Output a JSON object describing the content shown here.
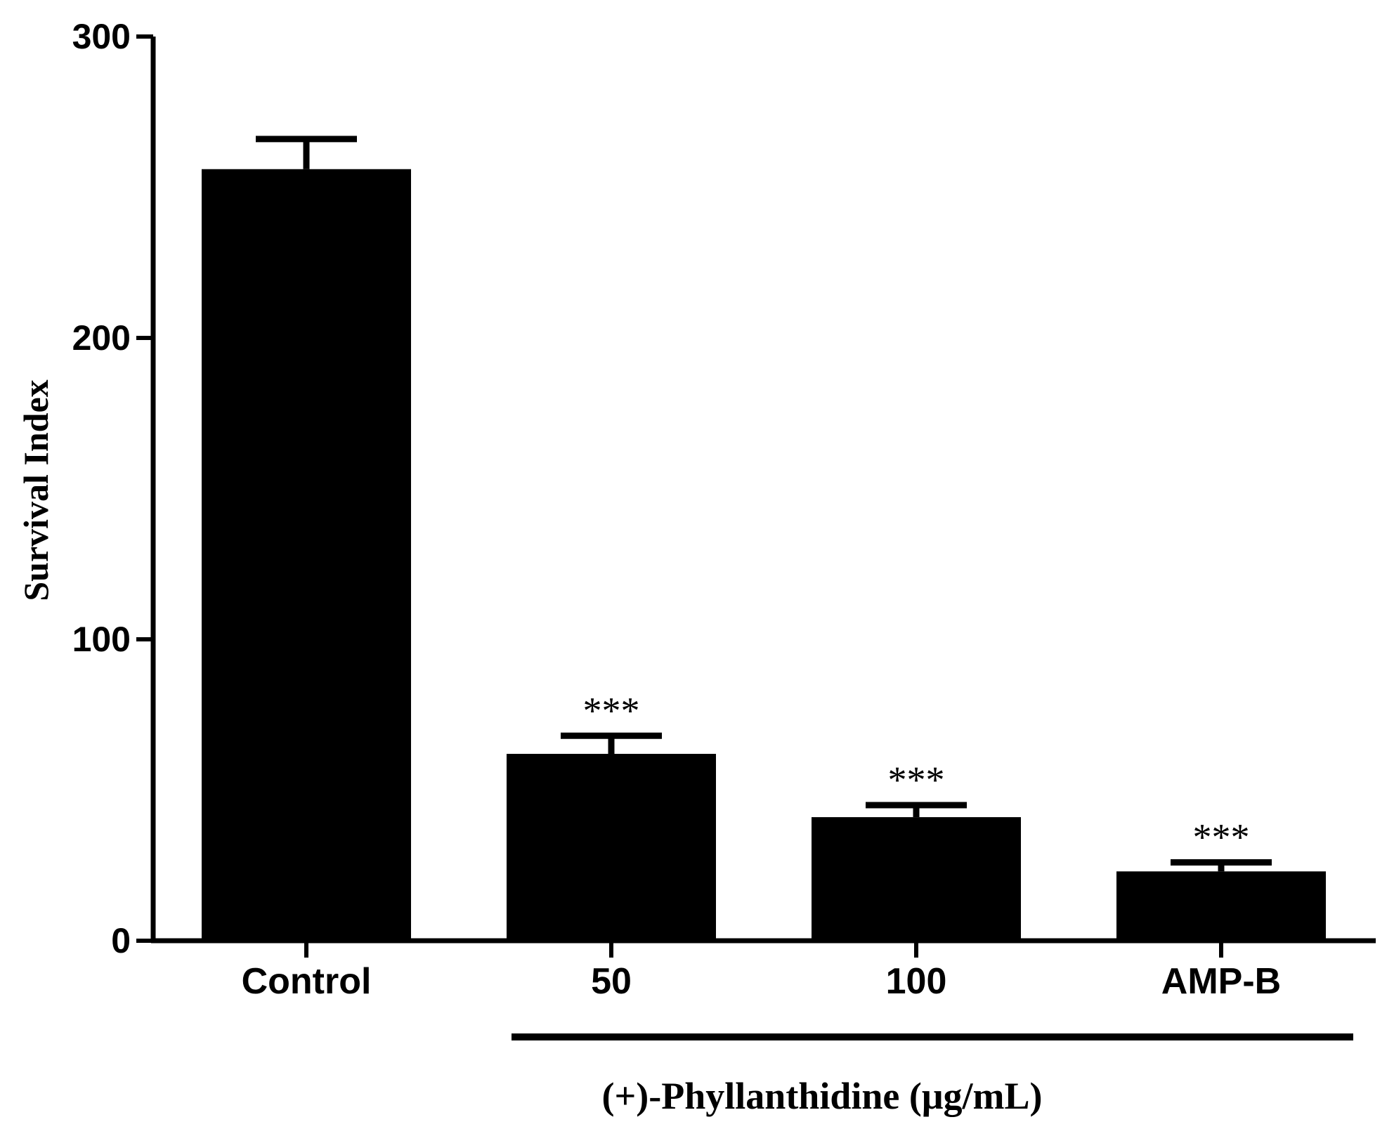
{
  "chart_data": {
    "type": "bar",
    "title": "",
    "xlabel": "",
    "ylabel": "Survival Index",
    "ylim": [
      0,
      300
    ],
    "yticks": [
      0,
      100,
      200,
      300
    ],
    "categories": [
      "Control",
      "50",
      "100",
      "AMP-B"
    ],
    "values": [
      256,
      62,
      41,
      23
    ],
    "errors": [
      10,
      6,
      4,
      3
    ],
    "annotations": [
      "",
      "***",
      "***",
      "***"
    ],
    "group_label": {
      "text": "(+)-Phyllanthidine (μg/mL)",
      "spans": [
        "50",
        "100",
        "AMP-B"
      ]
    },
    "bar_color": "#000000",
    "grid": false,
    "legend": "none"
  }
}
